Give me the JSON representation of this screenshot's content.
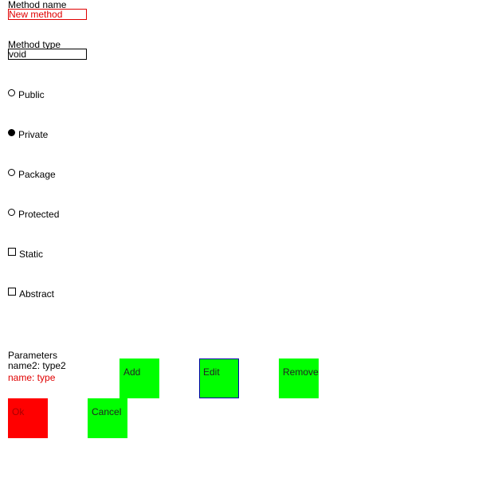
{
  "method_name": {
    "label": "Method name",
    "value": "New method"
  },
  "method_type": {
    "label": "Method type",
    "value": "void"
  },
  "visibility": {
    "options": [
      {
        "label": "Public",
        "selected": false
      },
      {
        "label": "Private",
        "selected": true
      },
      {
        "label": "Package",
        "selected": false
      },
      {
        "label": "Protected",
        "selected": false
      }
    ]
  },
  "modifiers": {
    "options": [
      {
        "label": "Static",
        "checked": false
      },
      {
        "label": "Abstract",
        "checked": false
      }
    ]
  },
  "parameters": {
    "label": "Parameters",
    "items": [
      {
        "text": "name2: type2",
        "selected": false
      },
      {
        "text": "name: type",
        "selected": true
      }
    ]
  },
  "buttons": {
    "add": "Add",
    "edit": "Edit",
    "remove": "Remove",
    "ok": "Ok",
    "cancel": "Cancel"
  },
  "colors": {
    "button_green": "#00ff00",
    "button_red": "#ff0000",
    "selection_red": "#e00000",
    "focus_blue": "#0000aa"
  }
}
